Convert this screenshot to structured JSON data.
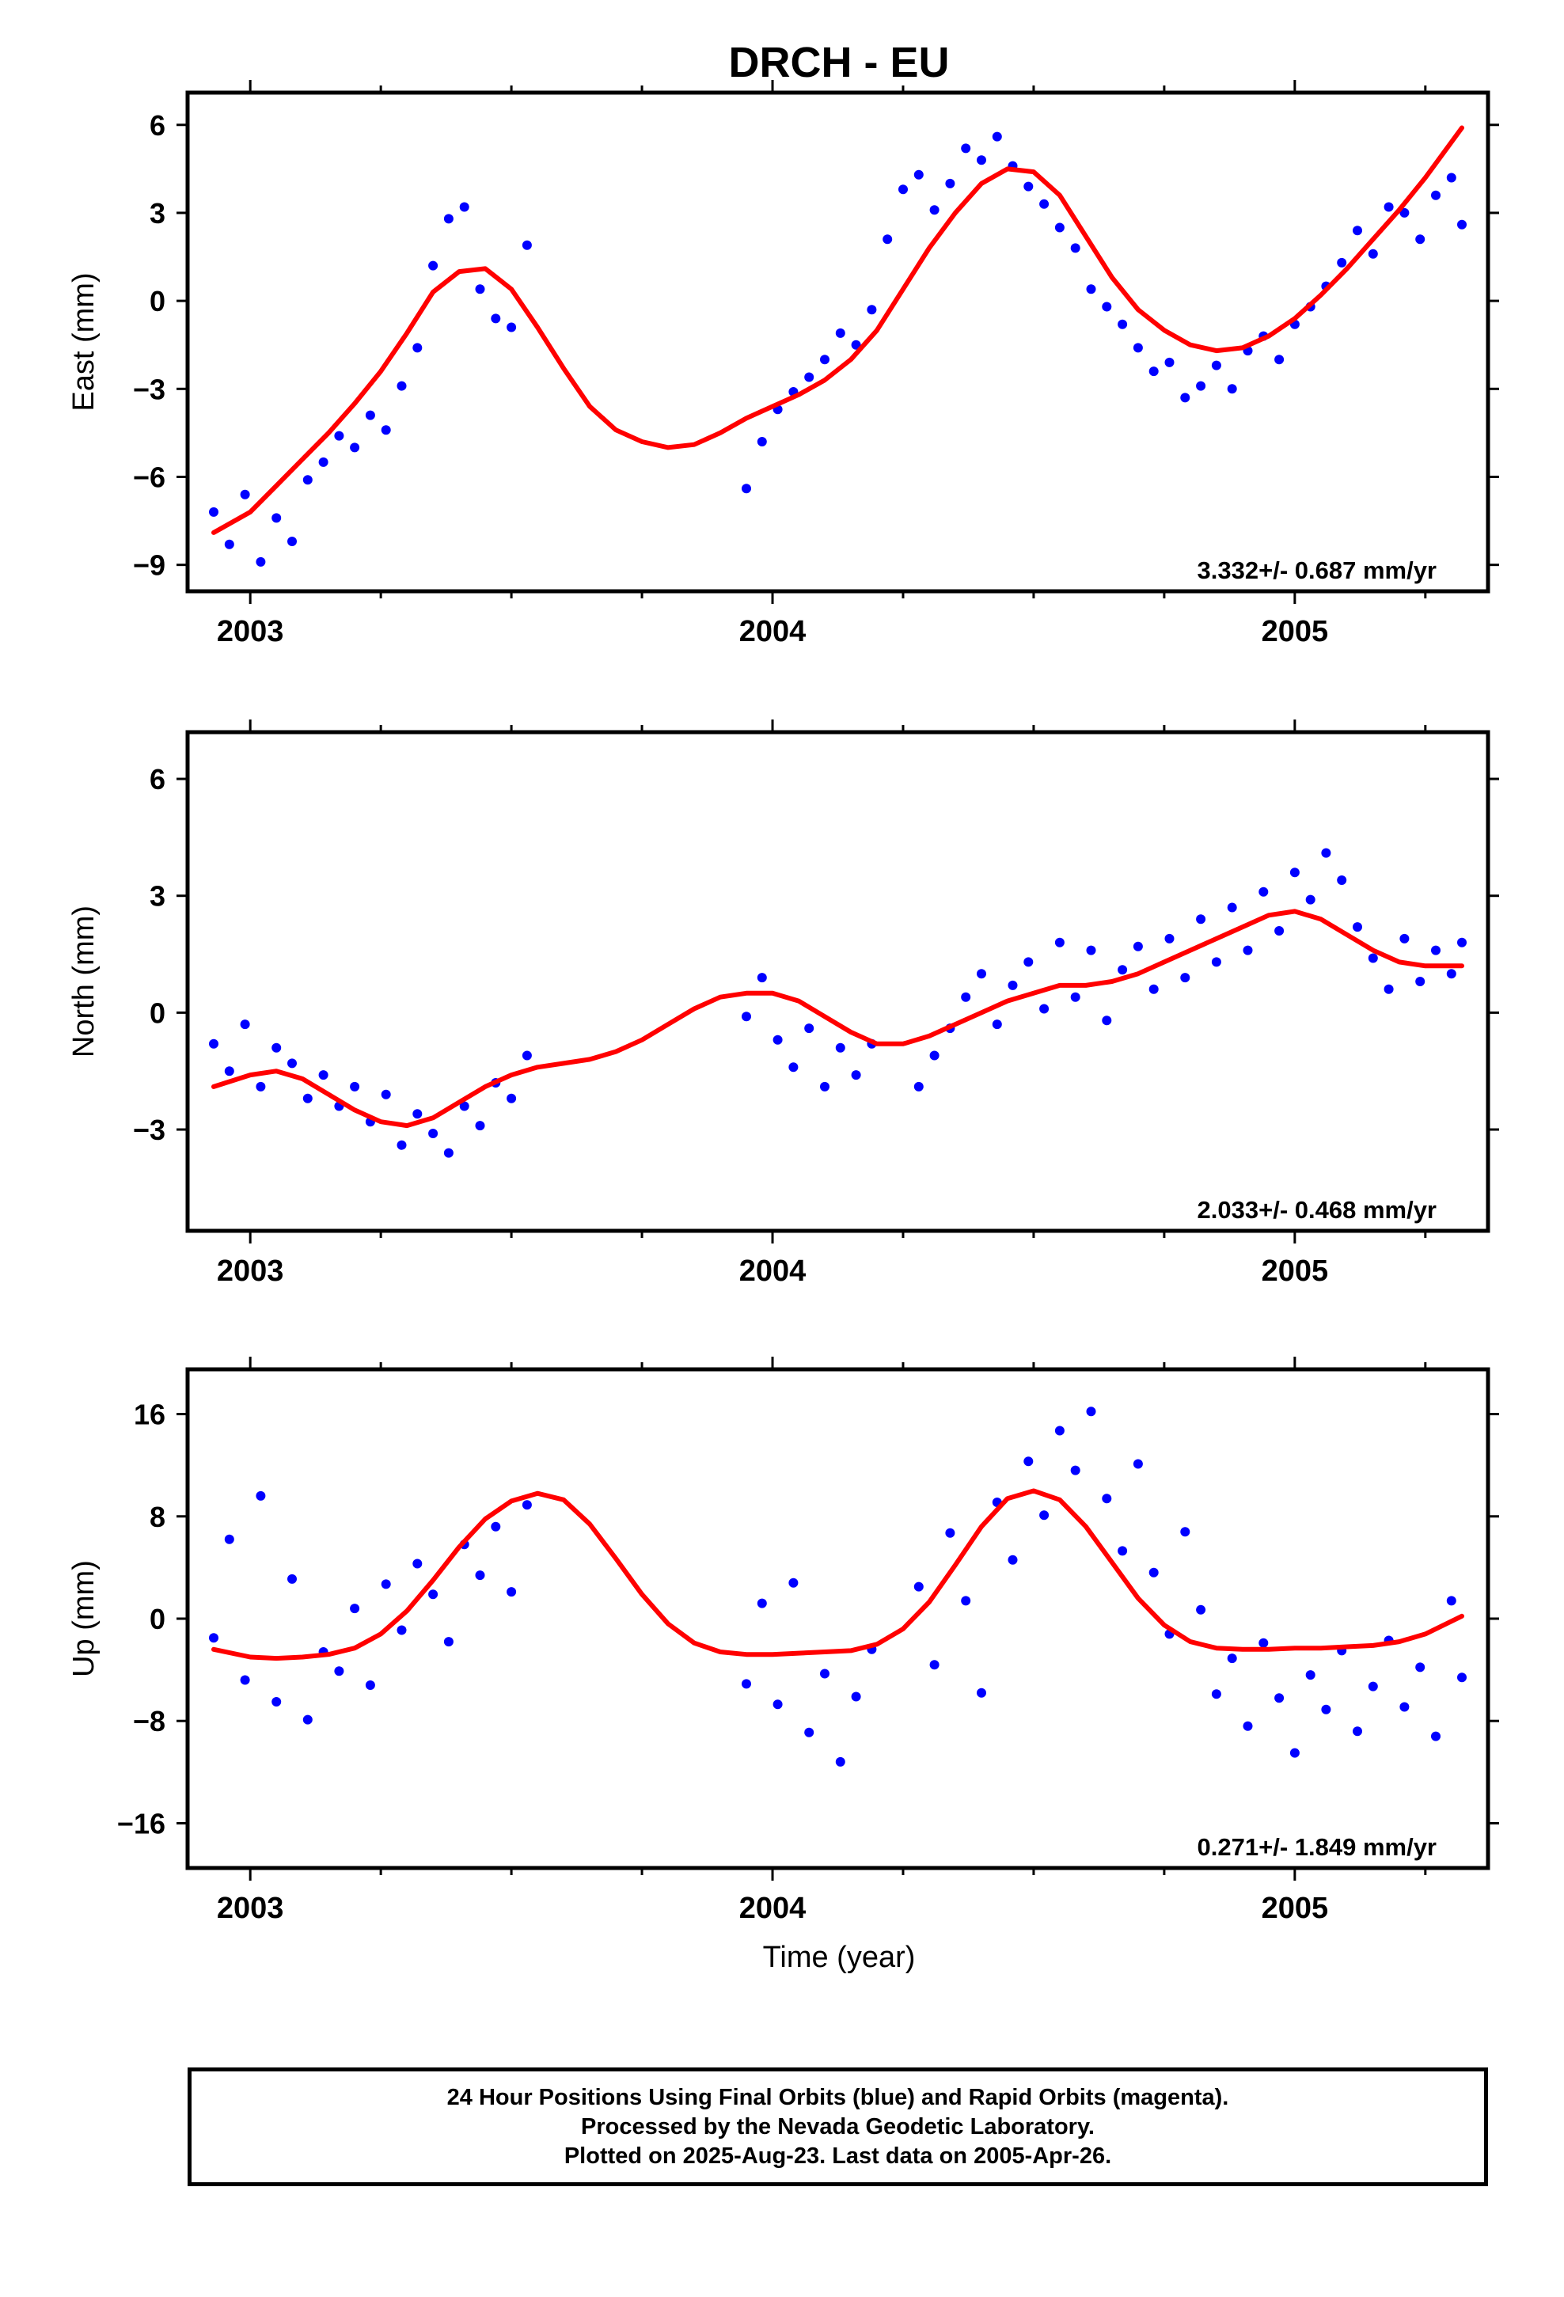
{
  "title": "DRCH - EU",
  "xlabel": "Time (year)",
  "colors": {
    "final": "#0000ff",
    "model": "#ff0000",
    "frame": "#000000"
  },
  "footer": {
    "line1": "24 Hour Positions Using Final Orbits (blue) and Rapid Orbits (magenta).",
    "line2": "Processed by the Nevada Geodetic Laboratory.",
    "line3": "Plotted on 2025-Aug-23. Last data on 2005-Apr-26."
  },
  "chart_data": [
    {
      "type": "scatter",
      "component": "east",
      "ylabel": "East (mm)",
      "xlim": [
        2002.88,
        2005.37
      ],
      "ylim": [
        -9.9,
        7.1
      ],
      "yticks": [
        -9,
        -6,
        -3,
        0,
        3,
        6
      ],
      "ytick_labels": [
        "−9",
        "−6",
        "−3",
        "0",
        "3",
        "6"
      ],
      "xticks": [
        2003,
        2004,
        2005
      ],
      "xtick_labels": [
        "2003",
        "2004",
        "2005"
      ],
      "rate_label": "3.332+/- 0.687 mm/yr",
      "grid": false,
      "series": [
        {
          "kind": "points",
          "x": [
            2002.93,
            2002.96,
            2002.99,
            2003.02,
            2003.05,
            2003.08,
            2003.11,
            2003.14,
            2003.17,
            2003.2,
            2003.23,
            2003.26,
            2003.29,
            2003.32,
            2003.35,
            2003.38,
            2003.41,
            2003.44,
            2003.47,
            2003.5,
            2003.53,
            2003.95,
            2003.98,
            2004.01,
            2004.04,
            2004.07,
            2004.1,
            2004.13,
            2004.16,
            2004.19,
            2004.22,
            2004.25,
            2004.28,
            2004.31,
            2004.34,
            2004.37,
            2004.4,
            2004.43,
            2004.46,
            2004.49,
            2004.52,
            2004.55,
            2004.58,
            2004.61,
            2004.64,
            2004.67,
            2004.7,
            2004.73,
            2004.76,
            2004.79,
            2004.82,
            2004.85,
            2004.88,
            2004.91,
            2004.94,
            2004.97,
            2005.0,
            2005.03,
            2005.06,
            2005.09,
            2005.12,
            2005.15,
            2005.18,
            2005.21,
            2005.24,
            2005.27,
            2005.3,
            2005.32
          ],
          "y": [
            -7.2,
            -8.3,
            -6.6,
            -8.9,
            -7.4,
            -8.2,
            -6.1,
            -5.5,
            -4.6,
            -5.0,
            -3.9,
            -4.4,
            -2.9,
            -1.6,
            1.2,
            2.8,
            3.2,
            0.4,
            -0.6,
            -0.9,
            1.9,
            -6.4,
            -4.8,
            -3.7,
            -3.1,
            -2.6,
            -2.0,
            -1.1,
            -1.5,
            -0.3,
            2.1,
            3.8,
            4.3,
            3.1,
            4.0,
            5.2,
            4.8,
            5.6,
            4.6,
            3.9,
            3.3,
            2.5,
            1.8,
            0.4,
            -0.2,
            -0.8,
            -1.6,
            -2.4,
            -2.1,
            -3.3,
            -2.9,
            -2.2,
            -3.0,
            -1.7,
            -1.2,
            -2.0,
            -0.8,
            -0.2,
            0.5,
            1.3,
            2.4,
            1.6,
            3.2,
            3.0,
            2.1,
            3.6,
            4.2,
            2.6
          ]
        },
        {
          "kind": "model",
          "rate": 3.332,
          "x": [
            2002.93,
            2003.0,
            2003.05,
            2003.1,
            2003.15,
            2003.2,
            2003.25,
            2003.3,
            2003.35,
            2003.4,
            2003.45,
            2003.5,
            2003.55,
            2003.6,
            2003.65,
            2003.7,
            2003.75,
            2003.8,
            2003.85,
            2003.9,
            2003.95,
            2004.0,
            2004.05,
            2004.1,
            2004.15,
            2004.2,
            2004.25,
            2004.3,
            2004.35,
            2004.4,
            2004.45,
            2004.5,
            2004.55,
            2004.6,
            2004.65,
            2004.7,
            2004.75,
            2004.8,
            2004.85,
            2004.9,
            2004.95,
            2005.0,
            2005.05,
            2005.1,
            2005.15,
            2005.2,
            2005.25,
            2005.32
          ],
          "y": [
            -7.9,
            -7.2,
            -6.3,
            -5.4,
            -4.5,
            -3.5,
            -2.4,
            -1.1,
            0.3,
            1.0,
            1.1,
            0.4,
            -0.9,
            -2.3,
            -3.6,
            -4.4,
            -4.8,
            -5.0,
            -4.9,
            -4.5,
            -4.0,
            -3.6,
            -3.2,
            -2.7,
            -2.0,
            -1.0,
            0.4,
            1.8,
            3.0,
            4.0,
            4.5,
            4.4,
            3.6,
            2.2,
            0.8,
            -0.3,
            -1.0,
            -1.5,
            -1.7,
            -1.6,
            -1.2,
            -0.6,
            0.2,
            1.1,
            2.1,
            3.1,
            4.2,
            5.9
          ]
        }
      ]
    },
    {
      "type": "scatter",
      "component": "north",
      "ylabel": "North (mm)",
      "xlim": [
        2002.88,
        2005.37
      ],
      "ylim": [
        -5.6,
        7.2
      ],
      "yticks": [
        -3,
        0,
        3,
        6
      ],
      "ytick_labels": [
        "−3",
        "0",
        "3",
        "6"
      ],
      "xticks": [
        2003,
        2004,
        2005
      ],
      "xtick_labels": [
        "2003",
        "2004",
        "2005"
      ],
      "rate_label": "2.033+/- 0.468 mm/yr",
      "grid": false,
      "series": [
        {
          "kind": "points",
          "x": [
            2002.93,
            2002.96,
            2002.99,
            2003.02,
            2003.05,
            2003.08,
            2003.11,
            2003.14,
            2003.17,
            2003.2,
            2003.23,
            2003.26,
            2003.29,
            2003.32,
            2003.35,
            2003.38,
            2003.41,
            2003.44,
            2003.47,
            2003.5,
            2003.53,
            2003.95,
            2003.98,
            2004.01,
            2004.04,
            2004.07,
            2004.1,
            2004.13,
            2004.16,
            2004.19,
            2004.28,
            2004.31,
            2004.34,
            2004.37,
            2004.4,
            2004.43,
            2004.46,
            2004.49,
            2004.52,
            2004.55,
            2004.58,
            2004.61,
            2004.64,
            2004.67,
            2004.7,
            2004.73,
            2004.76,
            2004.79,
            2004.82,
            2004.85,
            2004.88,
            2004.91,
            2004.94,
            2004.97,
            2005.0,
            2005.03,
            2005.06,
            2005.09,
            2005.12,
            2005.15,
            2005.18,
            2005.21,
            2005.24,
            2005.27,
            2005.3,
            2005.32
          ],
          "y": [
            -0.8,
            -1.5,
            -0.3,
            -1.9,
            -0.9,
            -1.3,
            -2.2,
            -1.6,
            -2.4,
            -1.9,
            -2.8,
            -2.1,
            -3.4,
            -2.6,
            -3.1,
            -3.6,
            -2.4,
            -2.9,
            -1.8,
            -2.2,
            -1.1,
            -0.1,
            0.9,
            -0.7,
            -1.4,
            -0.4,
            -1.9,
            -0.9,
            -1.6,
            -0.8,
            -1.9,
            -1.1,
            -0.4,
            0.4,
            1.0,
            -0.3,
            0.7,
            1.3,
            0.1,
            1.8,
            0.4,
            1.6,
            -0.2,
            1.1,
            1.7,
            0.6,
            1.9,
            0.9,
            2.4,
            1.3,
            2.7,
            1.6,
            3.1,
            2.1,
            3.6,
            2.9,
            4.1,
            3.4,
            2.2,
            1.4,
            0.6,
            1.9,
            0.8,
            1.6,
            1.0,
            1.8
          ]
        },
        {
          "kind": "model",
          "rate": 2.033,
          "x": [
            2002.93,
            2003.0,
            2003.05,
            2003.1,
            2003.15,
            2003.2,
            2003.25,
            2003.3,
            2003.35,
            2003.4,
            2003.45,
            2003.5,
            2003.55,
            2003.6,
            2003.65,
            2003.7,
            2003.75,
            2003.8,
            2003.85,
            2003.9,
            2003.95,
            2004.0,
            2004.05,
            2004.1,
            2004.15,
            2004.2,
            2004.25,
            2004.3,
            2004.35,
            2004.4,
            2004.45,
            2004.5,
            2004.55,
            2004.6,
            2004.65,
            2004.7,
            2004.75,
            2004.8,
            2004.85,
            2004.9,
            2004.95,
            2005.0,
            2005.05,
            2005.1,
            2005.15,
            2005.2,
            2005.25,
            2005.32
          ],
          "y": [
            -1.9,
            -1.6,
            -1.5,
            -1.7,
            -2.1,
            -2.5,
            -2.8,
            -2.9,
            -2.7,
            -2.3,
            -1.9,
            -1.6,
            -1.4,
            -1.3,
            -1.2,
            -1.0,
            -0.7,
            -0.3,
            0.1,
            0.4,
            0.5,
            0.5,
            0.3,
            -0.1,
            -0.5,
            -0.8,
            -0.8,
            -0.6,
            -0.3,
            0.0,
            0.3,
            0.5,
            0.7,
            0.7,
            0.8,
            1.0,
            1.3,
            1.6,
            1.9,
            2.2,
            2.5,
            2.6,
            2.4,
            2.0,
            1.6,
            1.3,
            1.2,
            1.2
          ]
        }
      ]
    },
    {
      "type": "scatter",
      "component": "up",
      "ylabel": "Up (mm)",
      "xlim": [
        2002.88,
        2005.37
      ],
      "ylim": [
        -19.5,
        19.5
      ],
      "yticks": [
        -16,
        -8,
        0,
        8,
        16
      ],
      "ytick_labels": [
        "−16",
        "−8",
        "0",
        "8",
        "16"
      ],
      "xticks": [
        2003,
        2004,
        2005
      ],
      "xtick_labels": [
        "2003",
        "2004",
        "2005"
      ],
      "rate_label": "0.271+/- 1.849 mm/yr",
      "grid": false,
      "series": [
        {
          "kind": "points",
          "x": [
            2002.93,
            2002.96,
            2002.99,
            2003.02,
            2003.05,
            2003.08,
            2003.11,
            2003.14,
            2003.17,
            2003.2,
            2003.23,
            2003.26,
            2003.29,
            2003.32,
            2003.35,
            2003.38,
            2003.41,
            2003.44,
            2003.47,
            2003.5,
            2003.53,
            2003.95,
            2003.98,
            2004.01,
            2004.04,
            2004.07,
            2004.1,
            2004.13,
            2004.16,
            2004.19,
            2004.28,
            2004.31,
            2004.34,
            2004.37,
            2004.4,
            2004.43,
            2004.46,
            2004.49,
            2004.52,
            2004.55,
            2004.58,
            2004.61,
            2004.64,
            2004.67,
            2004.7,
            2004.73,
            2004.76,
            2004.79,
            2004.82,
            2004.85,
            2004.88,
            2004.91,
            2004.94,
            2004.97,
            2005.0,
            2005.03,
            2005.06,
            2005.09,
            2005.12,
            2005.15,
            2005.18,
            2005.21,
            2005.24,
            2005.27,
            2005.3,
            2005.32
          ],
          "y": [
            -1.5,
            6.2,
            -4.8,
            9.6,
            -6.5,
            3.1,
            -7.9,
            -2.6,
            -4.1,
            0.8,
            -5.2,
            2.7,
            -0.9,
            4.3,
            1.9,
            -1.8,
            5.8,
            3.4,
            7.2,
            2.1,
            8.9,
            -5.1,
            1.2,
            -6.7,
            2.8,
            -8.9,
            -4.3,
            -11.2,
            -6.1,
            -2.4,
            2.5,
            -3.6,
            6.7,
            1.4,
            -5.8,
            9.1,
            4.6,
            12.3,
            8.1,
            14.7,
            11.6,
            16.2,
            9.4,
            5.3,
            12.1,
            3.6,
            -1.2,
            6.8,
            0.7,
            -5.9,
            -3.1,
            -8.4,
            -1.9,
            -6.2,
            -10.5,
            -4.4,
            -7.1,
            -2.5,
            -8.8,
            -5.3,
            -1.7,
            -6.9,
            -3.8,
            -9.2,
            1.4,
            -4.6
          ]
        },
        {
          "kind": "model",
          "rate": 0.271,
          "x": [
            2002.93,
            2003.0,
            2003.05,
            2003.1,
            2003.15,
            2003.2,
            2003.25,
            2003.3,
            2003.35,
            2003.4,
            2003.45,
            2003.5,
            2003.55,
            2003.6,
            2003.65,
            2003.7,
            2003.75,
            2003.8,
            2003.85,
            2003.9,
            2003.95,
            2004.0,
            2004.05,
            2004.1,
            2004.15,
            2004.2,
            2004.25,
            2004.3,
            2004.35,
            2004.4,
            2004.45,
            2004.5,
            2004.55,
            2004.6,
            2004.65,
            2004.7,
            2004.75,
            2004.8,
            2004.85,
            2004.9,
            2004.95,
            2005.0,
            2005.05,
            2005.1,
            2005.15,
            2005.2,
            2005.25,
            2005.32
          ],
          "y": [
            -2.4,
            -3.0,
            -3.1,
            -3.0,
            -2.8,
            -2.3,
            -1.2,
            0.6,
            3.0,
            5.6,
            7.8,
            9.2,
            9.8,
            9.3,
            7.4,
            4.7,
            1.9,
            -0.4,
            -1.9,
            -2.6,
            -2.8,
            -2.8,
            -2.7,
            -2.6,
            -2.5,
            -2.0,
            -0.8,
            1.3,
            4.2,
            7.2,
            9.4,
            10.0,
            9.3,
            7.2,
            4.4,
            1.6,
            -0.5,
            -1.8,
            -2.3,
            -2.4,
            -2.4,
            -2.3,
            -2.3,
            -2.2,
            -2.1,
            -1.8,
            -1.2,
            0.2
          ]
        }
      ]
    }
  ]
}
